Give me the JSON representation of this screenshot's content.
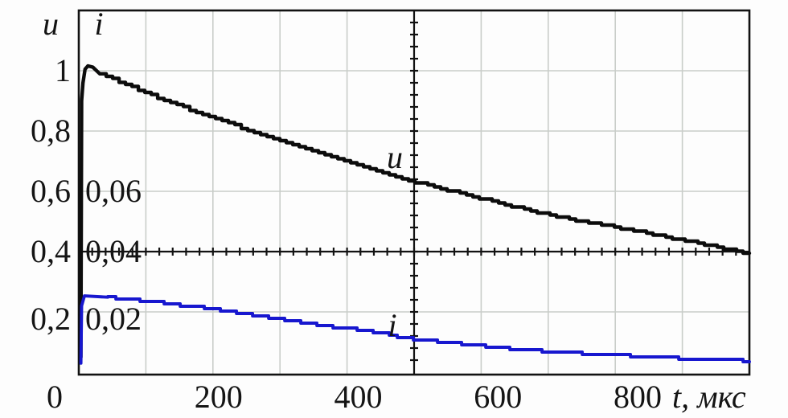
{
  "axes": {
    "u_axis_title": "u",
    "i_axis_title": "i",
    "origin_label": "0",
    "x_unit_label": "t, мкс",
    "u_ticks": [
      {
        "label": "1",
        "value": 1.0
      },
      {
        "label": "0,8",
        "value": 0.8
      },
      {
        "label": "0,6",
        "value": 0.6
      },
      {
        "label": "0,4",
        "value": 0.4
      },
      {
        "label": "0,2",
        "value": 0.2
      }
    ],
    "i_ticks": [
      {
        "label": "0,06",
        "value": 0.06
      },
      {
        "label": "0,04",
        "value": 0.04
      },
      {
        "label": "0,02",
        "value": 0.02
      }
    ],
    "x_ticks": [
      {
        "label": "200",
        "value": 200
      },
      {
        "label": "400",
        "value": 400
      },
      {
        "label": "600",
        "value": 600
      },
      {
        "label": "800",
        "value": 800
      }
    ]
  },
  "curve_labels": {
    "u": "u",
    "i": "i"
  },
  "colors": {
    "u_curve": "#0c0c0c",
    "i_curve": "#1717cf",
    "grid": "#c9cdc9",
    "axis": "#121212",
    "background": "#fdfdfd",
    "text": "#141414"
  },
  "chart_data": {
    "type": "line",
    "xlabel": "t, мкс",
    "x_range": [
      0,
      960
    ],
    "u_axis": {
      "label": "u",
      "range": [
        0,
        1.2
      ],
      "tick_values": [
        0.2,
        0.4,
        0.6,
        0.8,
        1.0
      ]
    },
    "i_axis": {
      "label": "i",
      "range": [
        0,
        0.12
      ],
      "tick_values": [
        0.02,
        0.04,
        0.06
      ]
    },
    "grid": {
      "x_step": 96,
      "u_step": 0.2,
      "grid_on": true
    },
    "crosshair": {
      "t": 480,
      "u": 0.4,
      "tick_step_t": 19.2,
      "tick_step_u": 0.04
    },
    "series": [
      {
        "name": "u",
        "scale": "u",
        "color": "#0c0c0c",
        "points": [
          [
            3,
            0.05
          ],
          [
            4,
            0.9
          ],
          [
            6,
            0.96
          ],
          [
            9,
            1.005
          ],
          [
            13,
            1.016
          ],
          [
            20,
            1.012
          ],
          [
            30,
            0.99
          ],
          [
            50,
            0.97
          ],
          [
            95,
            0.927
          ],
          [
            145,
            0.882
          ],
          [
            193,
            0.843
          ],
          [
            240,
            0.805
          ],
          [
            290,
            0.765
          ],
          [
            340,
            0.727
          ],
          [
            390,
            0.692
          ],
          [
            440,
            0.658
          ],
          [
            480,
            0.632
          ],
          [
            540,
            0.596
          ],
          [
            600,
            0.562
          ],
          [
            650,
            0.534
          ],
          [
            700,
            0.508
          ],
          [
            770,
            0.48
          ],
          [
            820,
            0.458
          ],
          [
            870,
            0.435
          ],
          [
            920,
            0.412
          ],
          [
            960,
            0.393
          ]
        ]
      },
      {
        "name": "i",
        "scale": "i",
        "color": "#1717cf",
        "points": [
          [
            3,
            0.003
          ],
          [
            4,
            0.022
          ],
          [
            8,
            0.0253
          ],
          [
            40,
            0.0247
          ],
          [
            95,
            0.0236
          ],
          [
            145,
            0.0222
          ],
          [
            193,
            0.0208
          ],
          [
            240,
            0.0191
          ],
          [
            290,
            0.0174
          ],
          [
            340,
            0.0158
          ],
          [
            390,
            0.0142
          ],
          [
            435,
            0.0126
          ],
          [
            480,
            0.0109
          ],
          [
            540,
            0.0094
          ],
          [
            600,
            0.0081
          ],
          [
            680,
            0.0067
          ],
          [
            770,
            0.0056
          ],
          [
            850,
            0.0047
          ],
          [
            905,
            0.0042
          ],
          [
            960,
            0.0038
          ]
        ]
      }
    ]
  }
}
